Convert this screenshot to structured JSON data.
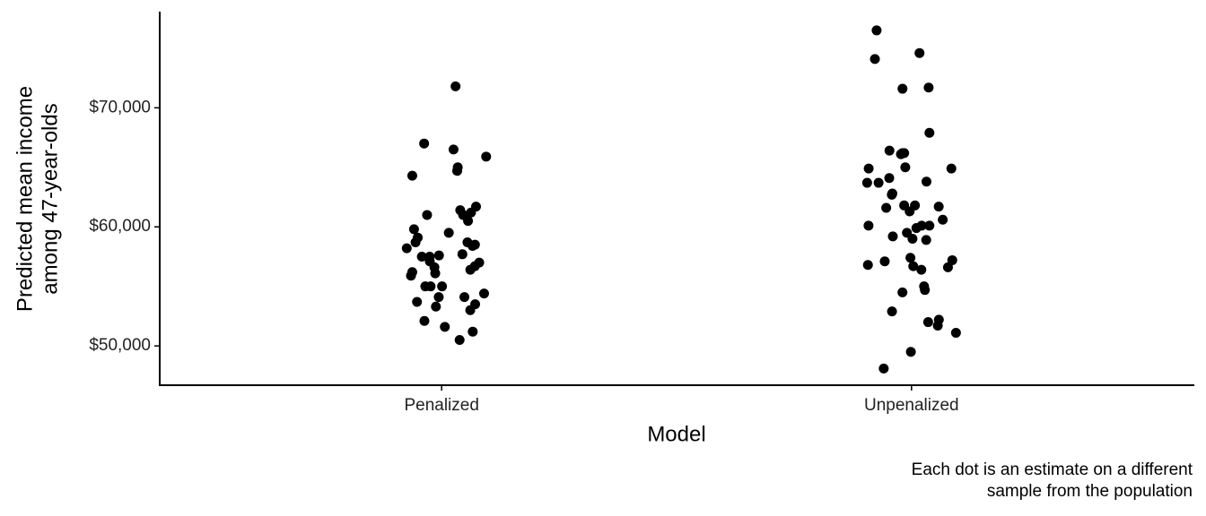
{
  "chart_data": {
    "type": "strip",
    "x_label": "Model",
    "y_label": [
      "Predicted mean income",
      "among 47-year-olds"
    ],
    "caption": [
      "Each dot is an estimate on a different",
      "sample from the population"
    ],
    "categories": [
      "Penalized",
      "Unpenalized"
    ],
    "color": "#000000",
    "ylim": [
      46700,
      78000
    ],
    "yticks": [
      {
        "value": 50000,
        "label": "$50,000"
      },
      {
        "value": 60000,
        "label": "$60,000"
      },
      {
        "value": 70000,
        "label": "$70,000"
      }
    ],
    "values": [
      [
        71800,
        67000,
        66500,
        65900,
        65000,
        64700,
        64300,
        61700,
        61400,
        61200,
        61000,
        61000,
        60500,
        59800,
        59500,
        59100,
        58700,
        58700,
        58500,
        58400,
        58200,
        57600,
        57700,
        57500,
        57500,
        57100,
        57000,
        56700,
        56600,
        56100,
        56400,
        56200,
        55900,
        55000,
        55000,
        55000,
        54400,
        54100,
        54100,
        53700,
        53300,
        53500,
        53000,
        52100,
        51600,
        51200,
        50500
      ],
      [
        76500,
        74600,
        74100,
        71700,
        71600,
        67900,
        66400,
        66100,
        66200,
        66200,
        64900,
        65000,
        64900,
        64100,
        63700,
        63800,
        63700,
        62800,
        62700,
        61800,
        61600,
        61700,
        61300,
        61800,
        60600,
        60100,
        60100,
        60100,
        59900,
        59500,
        59000,
        58900,
        59200,
        57400,
        57200,
        57100,
        56700,
        56600,
        56400,
        56800,
        55000,
        54700,
        54500,
        52200,
        52000,
        52900,
        51700,
        51100,
        49500,
        48100
      ]
    ]
  }
}
